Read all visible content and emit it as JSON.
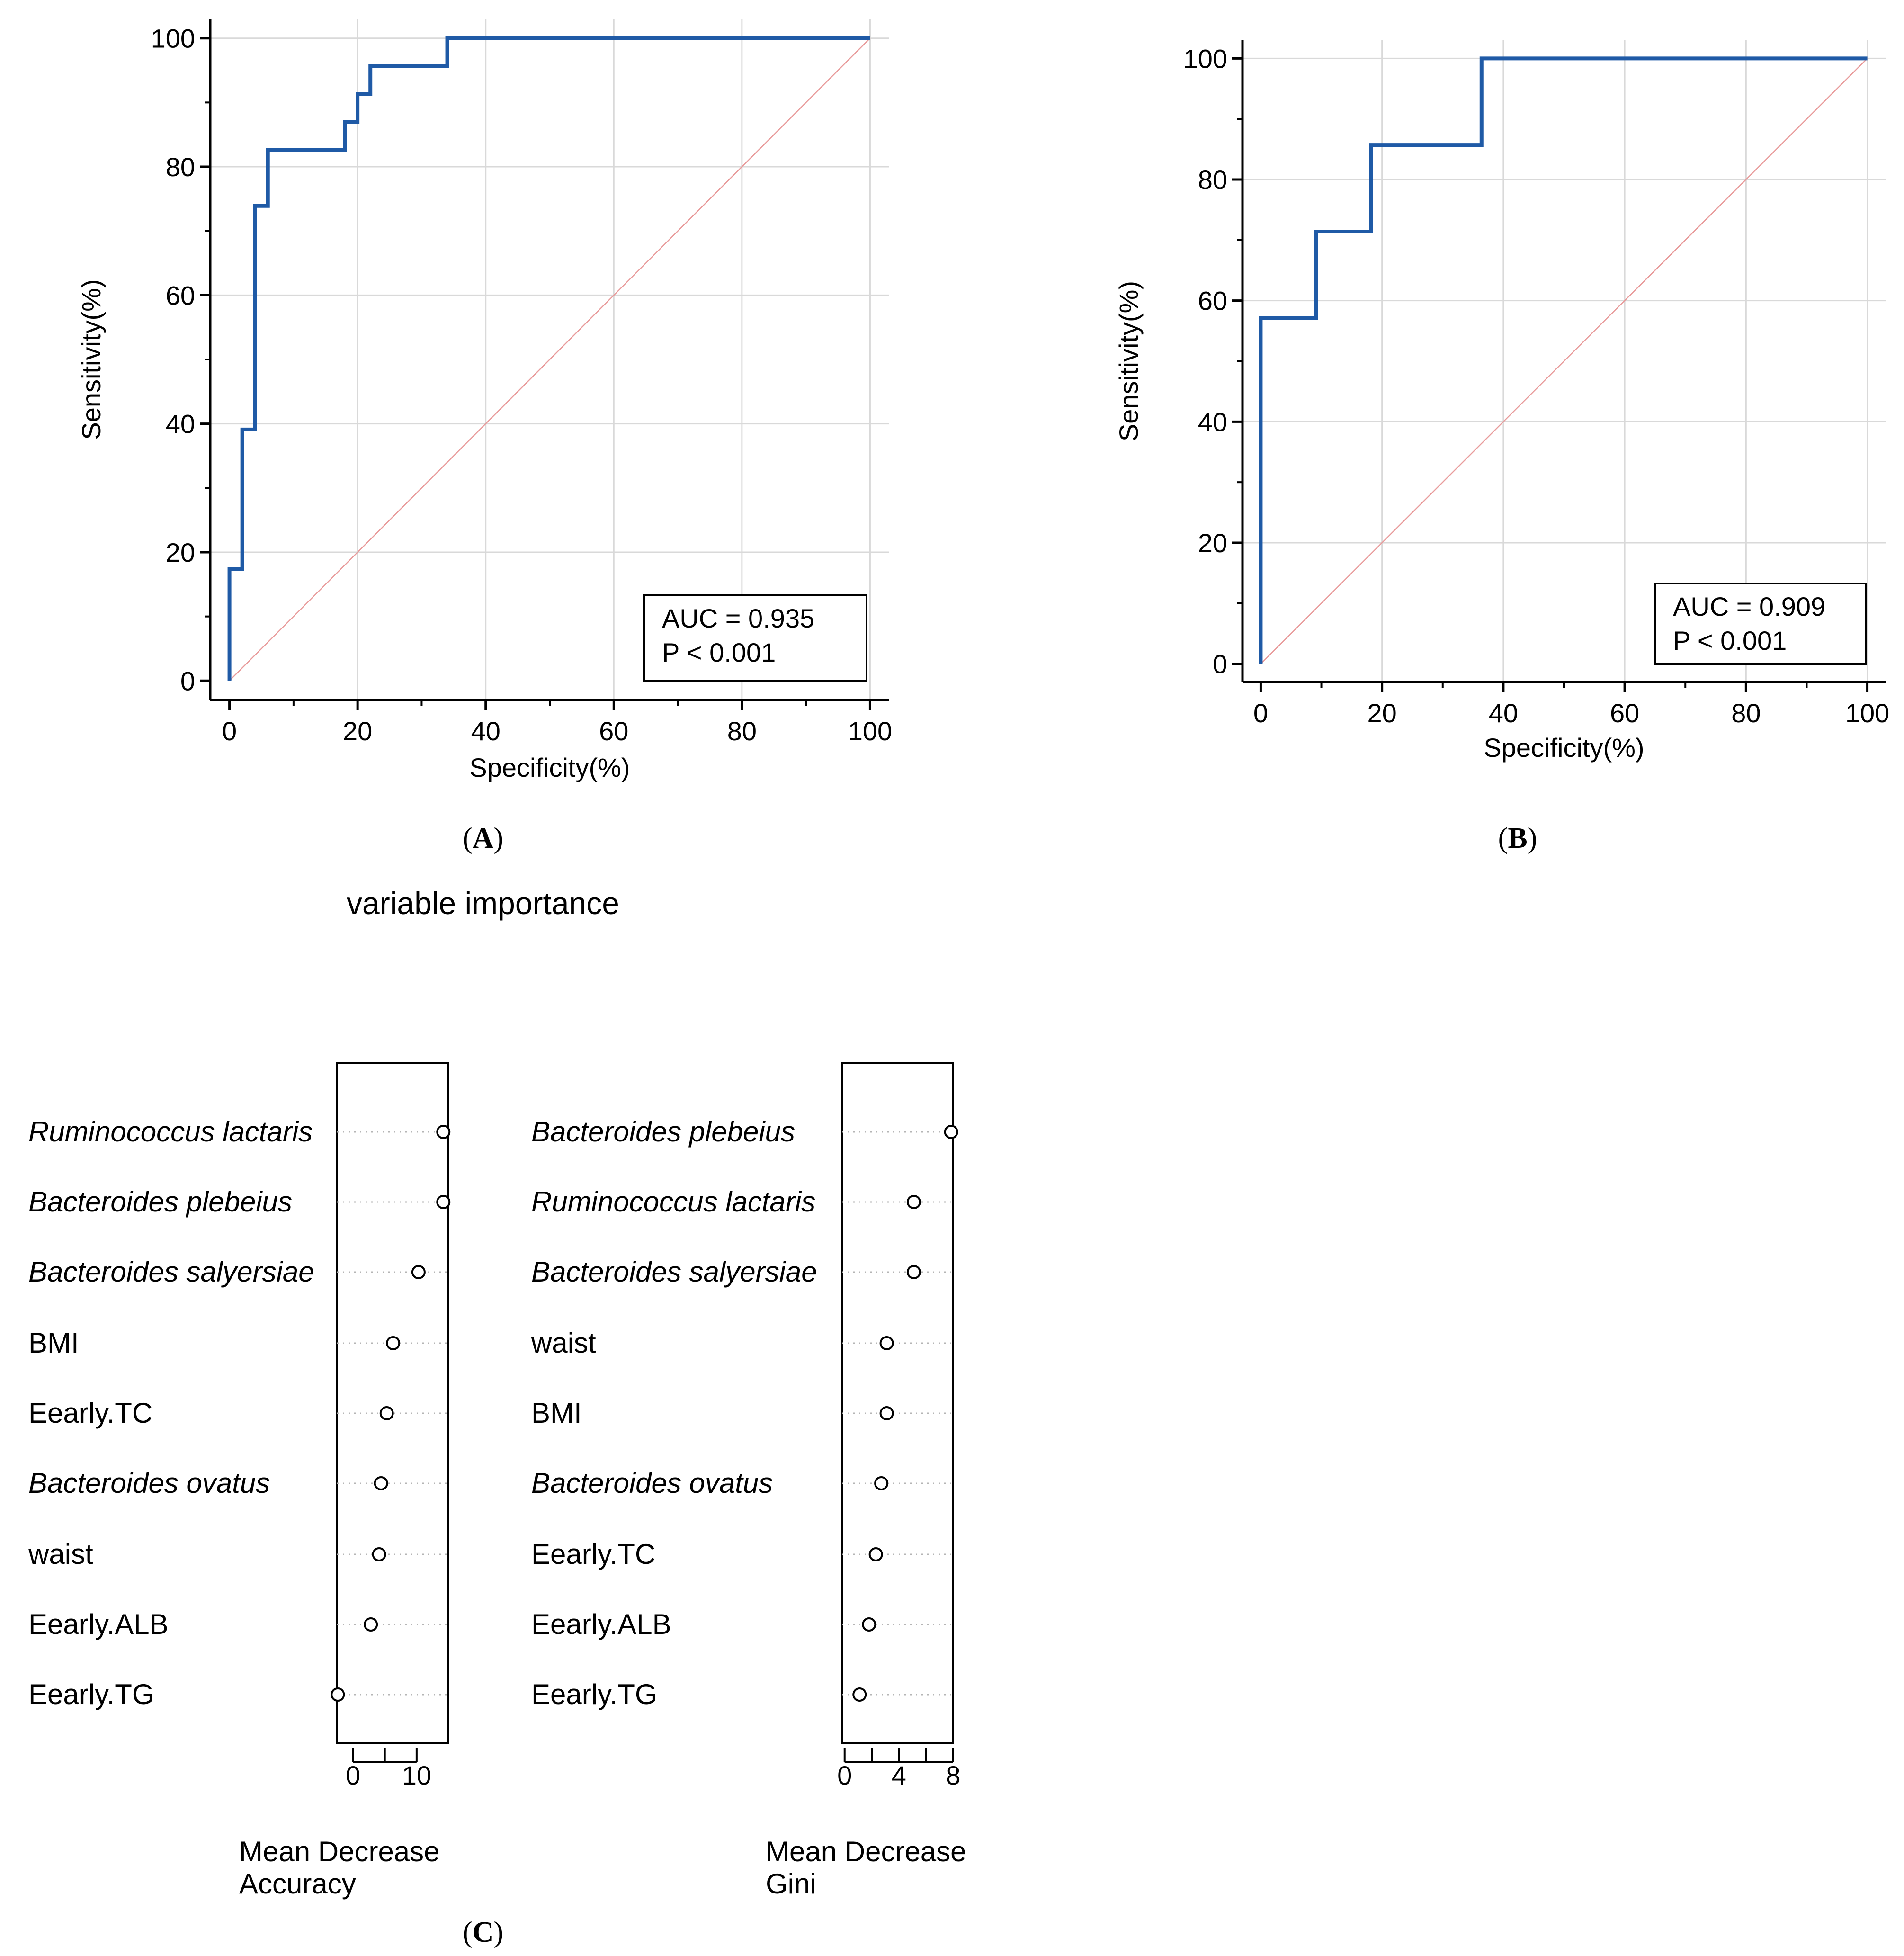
{
  "panels": {
    "A": {
      "label": "(A)",
      "letter": "A"
    },
    "B": {
      "label": "(B)",
      "letter": "B"
    },
    "C": {
      "label": "(C)",
      "letter": "C"
    }
  },
  "colors": {
    "roc_line": "#1f5aa6",
    "diagonal": "#e89a9a",
    "grid": "#d9d9d9",
    "axis": "#000000"
  },
  "chart_data": [
    {
      "id": "A",
      "type": "line",
      "title": "",
      "xlabel": "Specificity(%)",
      "ylabel": "Sensitivity(%)",
      "xlim": [
        -3,
        103
      ],
      "ylim": [
        -3,
        103
      ],
      "xticks": [
        0,
        20,
        40,
        60,
        80,
        100
      ],
      "yticks": [
        0,
        20,
        40,
        60,
        80,
        100
      ],
      "grid": true,
      "series": [
        {
          "name": "ROC",
          "x": [
            0,
            0,
            2,
            2,
            4,
            4,
            6,
            6,
            18,
            18,
            20,
            20,
            22,
            22,
            34,
            34,
            100
          ],
          "y": [
            0,
            17.4,
            17.4,
            39.1,
            39.1,
            73.9,
            73.9,
            82.6,
            82.6,
            87,
            87,
            91.3,
            91.3,
            95.7,
            95.7,
            100,
            100
          ]
        },
        {
          "name": "reference",
          "x": [
            0,
            100
          ],
          "y": [
            0,
            100
          ]
        }
      ],
      "annotation": {
        "auc": "AUC = 0.935",
        "p": "P < 0.001"
      }
    },
    {
      "id": "B",
      "type": "line",
      "title": "",
      "xlabel": "Specificity(%)",
      "ylabel": "Sensitivity(%)",
      "xlim": [
        -3,
        103
      ],
      "ylim": [
        -3,
        103
      ],
      "xticks": [
        0,
        20,
        40,
        60,
        80,
        100
      ],
      "yticks": [
        0,
        20,
        40,
        60,
        80,
        100
      ],
      "grid": true,
      "series": [
        {
          "name": "ROC",
          "x": [
            0,
            0,
            9.1,
            9.1,
            18.2,
            18.2,
            36.4,
            36.4,
            100
          ],
          "y": [
            0,
            57.1,
            57.1,
            71.4,
            71.4,
            85.7,
            85.7,
            100,
            100
          ]
        },
        {
          "name": "reference",
          "x": [
            0,
            100
          ],
          "y": [
            0,
            100
          ]
        }
      ],
      "annotation": {
        "auc": "AUC = 0.909",
        "p": "P < 0.001"
      }
    },
    {
      "id": "C1",
      "type": "scatter",
      "title": "variable importance",
      "xlabel_line1": "Mean Decrease",
      "xlabel_line2": "Accuracy",
      "xlim": [
        -2.5,
        15
      ],
      "xticks": [
        0,
        10
      ],
      "xtick_labels": [
        "0",
        "10"
      ],
      "minor_ticks": [
        5
      ],
      "categories": [
        "Ruminococcus lactaris",
        "Bacteroides plebeius",
        "Bacteroides salyersiae",
        "BMI",
        "Eearly.TC",
        "Bacteroides ovatus",
        "waist",
        "Eearly.ALB",
        "Eearly.TG"
      ],
      "italic": [
        true,
        true,
        true,
        false,
        false,
        true,
        false,
        false,
        false
      ],
      "values": [
        14.2,
        14.2,
        10.3,
        6.3,
        5.3,
        4.4,
        4.1,
        2.8,
        -2.4
      ]
    },
    {
      "id": "C2",
      "type": "scatter",
      "title": "",
      "xlabel_line1": "Mean Decrease",
      "xlabel_line2": "Gini",
      "xlim": [
        -0.2,
        8.0
      ],
      "xticks": [
        0,
        4,
        8
      ],
      "xtick_labels": [
        "0",
        "4",
        "8"
      ],
      "minor_ticks": [
        2,
        6
      ],
      "categories": [
        "Bacteroides plebeius",
        "Ruminococcus lactaris",
        "Bacteroides salyersiae",
        "waist",
        "BMI",
        "Bacteroides ovatus",
        "Eearly.TC",
        "Eearly.ALB",
        "Eearly.TG"
      ],
      "italic": [
        true,
        true,
        true,
        false,
        false,
        true,
        false,
        false,
        false
      ],
      "values": [
        7.85,
        5.1,
        5.1,
        3.1,
        3.1,
        2.7,
        2.3,
        1.8,
        1.1
      ]
    }
  ]
}
